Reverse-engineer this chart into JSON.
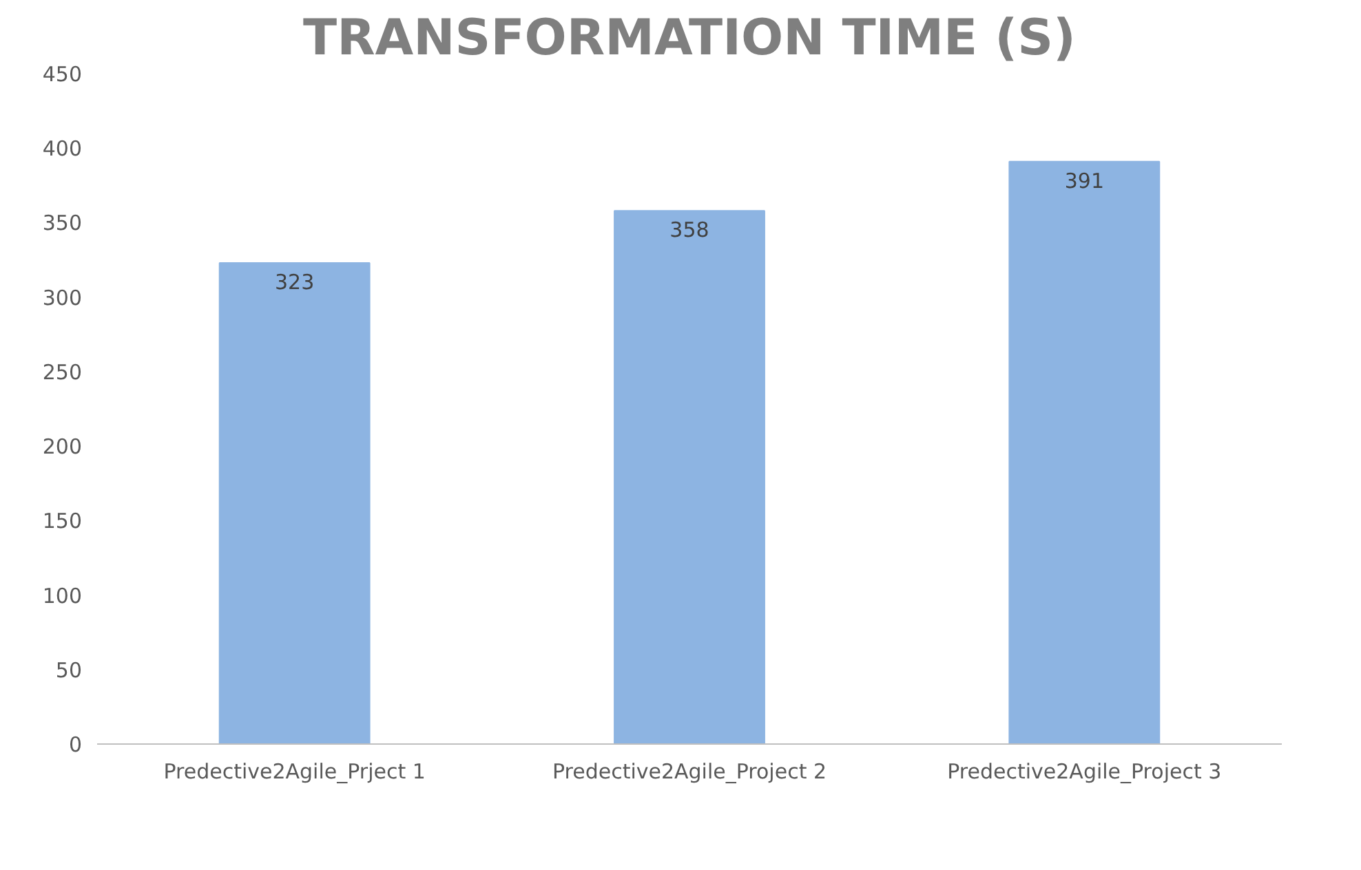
{
  "chart_data": {
    "type": "bar",
    "title": "TRANSFORMATION TIME (S)",
    "categories": [
      "Predective2Agile_Prject 1",
      "Predective2Agile_Project 2",
      "Predective2Agile_Project 3"
    ],
    "values": [
      323,
      358,
      391
    ],
    "color": "#8db4e2",
    "ylim": [
      0,
      450
    ],
    "yticks": [
      0,
      50,
      100,
      150,
      200,
      250,
      300,
      350,
      400,
      450
    ],
    "data_labels": true,
    "grid": false
  }
}
